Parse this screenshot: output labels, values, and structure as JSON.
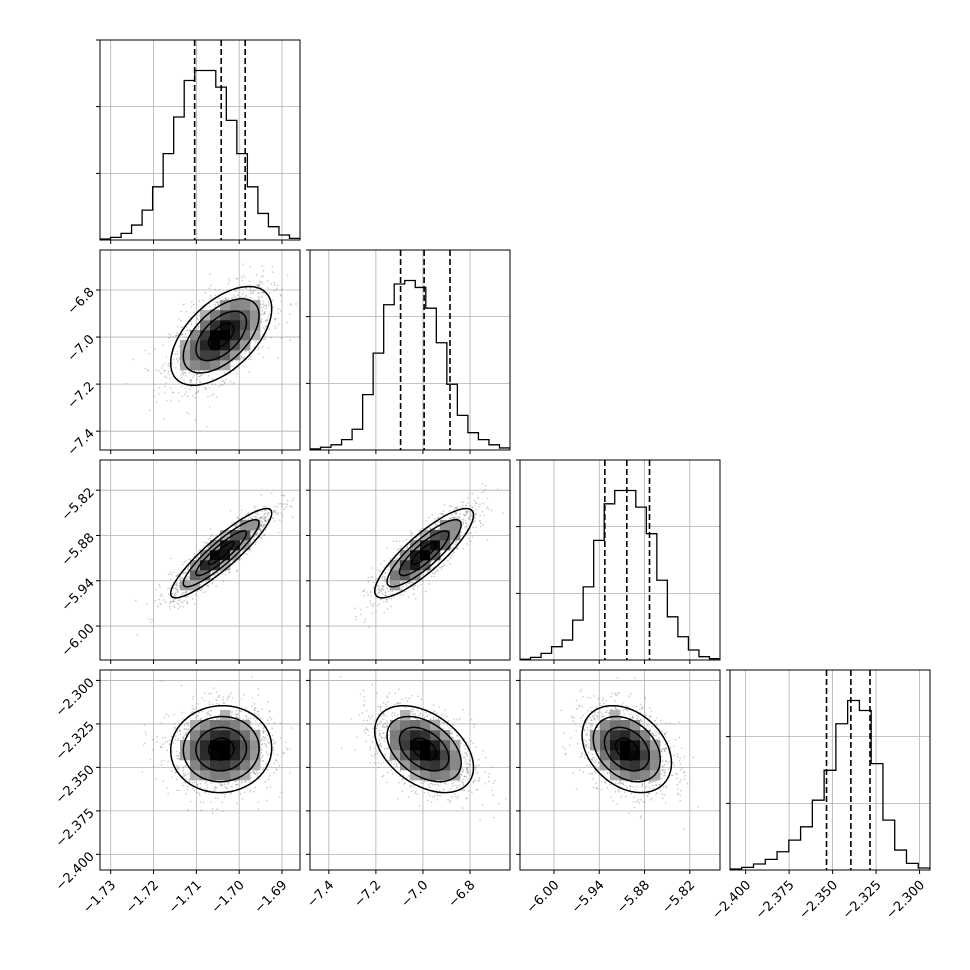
{
  "chart_data": {
    "type": "corner",
    "title": "",
    "parameters": [
      {
        "label": "",
        "range": [
          -1.7325,
          -1.6858
        ],
        "ticks": [
          -1.73,
          -1.72,
          -1.71,
          -1.7,
          -1.69
        ],
        "tick_labels": [
          "−1.73",
          "−1.72",
          "−1.71",
          "−1.70",
          "−1.69"
        ],
        "quantiles": [
          -1.7104,
          -1.7042,
          -1.6986
        ],
        "hist": [
          0.3,
          0.8,
          2,
          4.5,
          9,
          16,
          26,
          37,
          48,
          51,
          51,
          46,
          36,
          26,
          16,
          8,
          4,
          1.5,
          0.5
        ]
      },
      {
        "label": "",
        "range": [
          -7.48,
          -6.63
        ],
        "ticks": [
          -7.4,
          -7.2,
          -7.0,
          -6.8
        ],
        "tick_labels": [
          "−7.4",
          "−7.2",
          "−7.0",
          "−6.8"
        ],
        "quantiles": [
          -7.095,
          -6.995,
          -6.885
        ],
        "hist": [
          0.3,
          0.8,
          1.5,
          3,
          6,
          16,
          28,
          42,
          48,
          49,
          47,
          41,
          31,
          19,
          10,
          5,
          3,
          1.5,
          0.6
        ]
      },
      {
        "label": "",
        "range": [
          -6.045,
          -5.78
        ],
        "ticks": [
          -6.0,
          -5.94,
          -5.88,
          -5.82
        ],
        "tick_labels": [
          "−6.00",
          "−5.94",
          "−5.88",
          "−5.82"
        ],
        "quantiles": [
          -5.9326,
          -5.9035,
          -5.8734
        ],
        "hist": [
          0.2,
          0.8,
          2,
          4,
          6,
          12,
          22,
          36,
          47,
          51,
          51,
          46,
          38,
          24,
          13,
          7,
          3,
          1,
          0.4
        ]
      },
      {
        "label": "",
        "range": [
          -2.409,
          -2.294
        ],
        "ticks": [
          -2.4,
          -2.375,
          -2.35,
          -2.325,
          -2.3
        ],
        "tick_labels": [
          "−2.400",
          "−2.375",
          "−2.350",
          "−2.325",
          "−2.300"
        ],
        "quantiles": [
          -2.3535,
          -2.3395,
          -2.3285
        ],
        "hist": [
          0.3,
          0.8,
          1.8,
          3.2,
          5.5,
          9,
          13,
          21,
          30,
          44,
          51,
          48,
          32,
          15,
          6,
          2,
          0.6
        ]
      }
    ],
    "correlations": {
      "1-0": 0.55,
      "2-0": 0.9,
      "2-1": 0.85,
      "3-0": 0.03,
      "3-1": -0.42,
      "3-2": -0.32
    },
    "grid": true,
    "contours": true,
    "density_cmap": [
      "#ffffff",
      "#000000"
    ]
  }
}
